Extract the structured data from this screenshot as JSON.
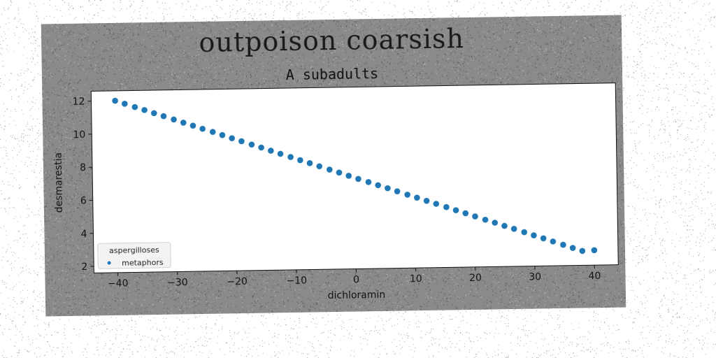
{
  "chart_data": {
    "type": "scatter",
    "title": "outpoison coarsish",
    "subtitle": "A subadults",
    "xlabel": "dichloramin",
    "ylabel": "desmarestia",
    "xlim": [
      -44,
      44
    ],
    "ylim": [
      1.6,
      12.6
    ],
    "xticks": [
      -40,
      -30,
      -20,
      -10,
      0,
      10,
      20,
      30,
      40
    ],
    "yticks": [
      2,
      4,
      6,
      8,
      10,
      12
    ],
    "grid": false,
    "legend": {
      "title": "aspergilloses",
      "position": "bottom-left"
    },
    "series": [
      {
        "name": "metaphors",
        "color": "#1f77b4",
        "x": [
          -40,
          -38.4,
          -36.7,
          -35.1,
          -33.5,
          -31.9,
          -30.2,
          -28.6,
          -27,
          -25.4,
          -23.7,
          -22.1,
          -20.5,
          -18.9,
          -17.2,
          -15.6,
          -14,
          -12.4,
          -10.7,
          -9.1,
          -7.5,
          -5.9,
          -4.2,
          -2.6,
          -1,
          0.6,
          2.3,
          3.9,
          5.5,
          7.1,
          8.8,
          10.4,
          12,
          13.6,
          15.3,
          16.9,
          18.5,
          20.1,
          21.8,
          23.4,
          25,
          26.6,
          28.3,
          29.9,
          31.5,
          33.1,
          34.8,
          36.4,
          38,
          40
        ],
        "y": [
          12,
          11.81,
          11.6,
          11.41,
          11.21,
          11.02,
          10.81,
          10.61,
          10.42,
          10.22,
          10.02,
          9.82,
          9.62,
          9.43,
          9.22,
          9.03,
          8.83,
          8.63,
          8.43,
          8.23,
          8.04,
          7.84,
          7.63,
          7.44,
          7.24,
          7.04,
          6.84,
          6.64,
          6.45,
          6.25,
          6.04,
          5.85,
          5.65,
          5.46,
          5.25,
          5.05,
          4.86,
          4.66,
          4.45,
          4.26,
          4.06,
          3.87,
          3.66,
          3.46,
          3.27,
          3.07,
          2.86,
          2.66,
          2.47,
          2.5
        ]
      }
    ]
  }
}
